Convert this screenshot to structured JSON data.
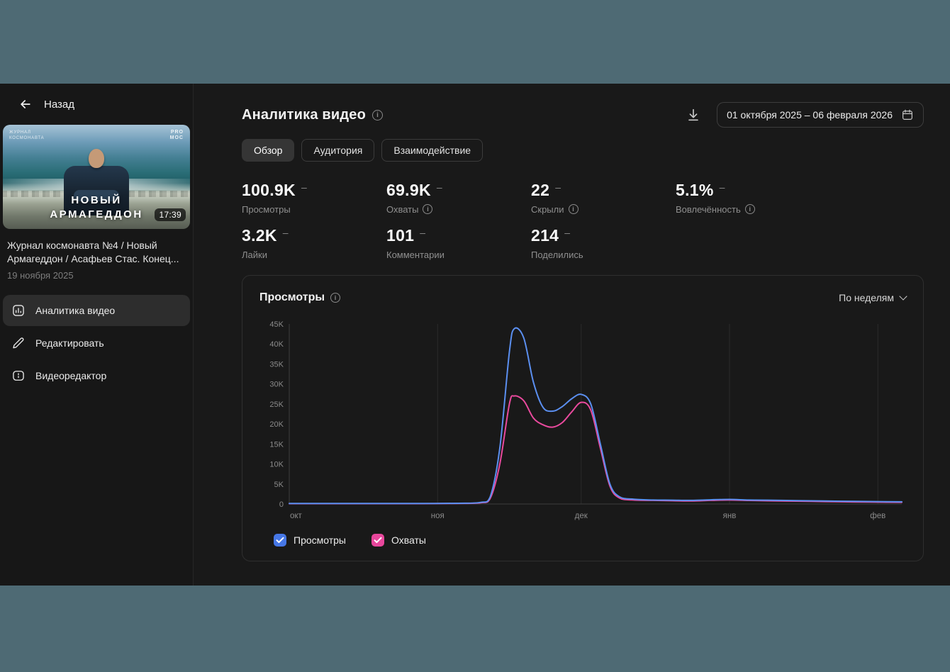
{
  "sidebar": {
    "back_label": "Назад",
    "video": {
      "thumb_watermark": "ЖУРНАЛ КОСМОНАВТА",
      "thumb_logo_line1": "PRO",
      "thumb_logo_line2": "MOC",
      "thumb_title_line1": "НОВЫЙ",
      "thumb_title_line2": "АРМАГЕДДОН",
      "duration": "17:39",
      "title": "Журнал космонавта №4 / Новый Армагеддон / Асафьев Стас. Конец...",
      "date": "19 ноября 2025"
    },
    "menu": [
      {
        "label": "Аналитика видео"
      },
      {
        "label": "Редактировать"
      },
      {
        "label": "Видеоредактор"
      }
    ]
  },
  "header": {
    "title": "Аналитика видео",
    "date_range": "01 октября 2025 – 06 февраля 2026"
  },
  "tabs": [
    {
      "label": "Обзор"
    },
    {
      "label": "Аудитория"
    },
    {
      "label": "Взаимодействие"
    }
  ],
  "stats": {
    "dash": "–",
    "items": [
      {
        "value": "100.9K",
        "label": "Просмотры"
      },
      {
        "value": "69.9K",
        "label": "Охваты"
      },
      {
        "value": "22",
        "label": "Скрыли"
      },
      {
        "value": "5.1%",
        "label": "Вовлечённость"
      },
      {
        "value": "3.2K",
        "label": "Лайки"
      },
      {
        "value": "101",
        "label": "Комментарии"
      },
      {
        "value": "214",
        "label": "Поделились"
      }
    ]
  },
  "chart": {
    "title": "Просмотры",
    "granularity": "По неделям"
  },
  "chart_data": {
    "type": "line",
    "title": "Просмотры",
    "granularity": "По неделям",
    "x_unit": "days_since_oct_1_2025",
    "x_max": 128,
    "ylim": [
      0,
      45000
    ],
    "grid": "vertical-monthly",
    "legend_position": "bottom-left",
    "x": [
      0,
      7,
      14,
      21,
      28,
      35,
      40,
      42,
      44,
      46,
      47,
      49,
      51,
      53,
      55,
      57,
      59,
      61,
      63,
      65,
      67,
      69,
      72,
      76,
      80,
      84,
      88,
      92,
      96,
      100,
      106,
      112,
      118,
      123,
      128
    ],
    "series": [
      {
        "name": "Просмотры",
        "color": "#5b8ff0",
        "checkbox_color": "#4677e6",
        "values": [
          120,
          120,
          120,
          120,
          130,
          180,
          400,
          1800,
          14000,
          38000,
          43800,
          41500,
          30500,
          24200,
          23200,
          24300,
          26300,
          27400,
          25000,
          15000,
          5000,
          1800,
          1200,
          1000,
          950,
          900,
          1050,
          1150,
          1000,
          950,
          850,
          750,
          650,
          600,
          550
        ]
      },
      {
        "name": "Охваты",
        "color": "#ea4a9e",
        "checkbox_color": "#e8479c",
        "values": [
          90,
          90,
          90,
          90,
          95,
          140,
          300,
          1400,
          10000,
          25000,
          27000,
          25800,
          21500,
          19800,
          19200,
          20300,
          23000,
          25400,
          23500,
          14000,
          4500,
          1500,
          1000,
          900,
          820,
          750,
          900,
          1000,
          880,
          800,
          700,
          600,
          520,
          460,
          420
        ]
      }
    ],
    "x_ticks": [
      {
        "label": "окт",
        "day": 0
      },
      {
        "label": "ноя",
        "day": 31
      },
      {
        "label": "дек",
        "day": 61
      },
      {
        "label": "янв",
        "day": 92
      },
      {
        "label": "фев",
        "day": 123
      }
    ],
    "y_ticks": [
      {
        "label": "45K",
        "value": 45000
      },
      {
        "label": "40K",
        "value": 40000
      },
      {
        "label": "35K",
        "value": 35000
      },
      {
        "label": "30K",
        "value": 30000
      },
      {
        "label": "25K",
        "value": 25000
      },
      {
        "label": "20K",
        "value": 20000
      },
      {
        "label": "15K",
        "value": 15000
      },
      {
        "label": "10K",
        "value": 10000
      },
      {
        "label": "5K",
        "value": 5000
      },
      {
        "label": "0",
        "value": 0
      }
    ]
  }
}
